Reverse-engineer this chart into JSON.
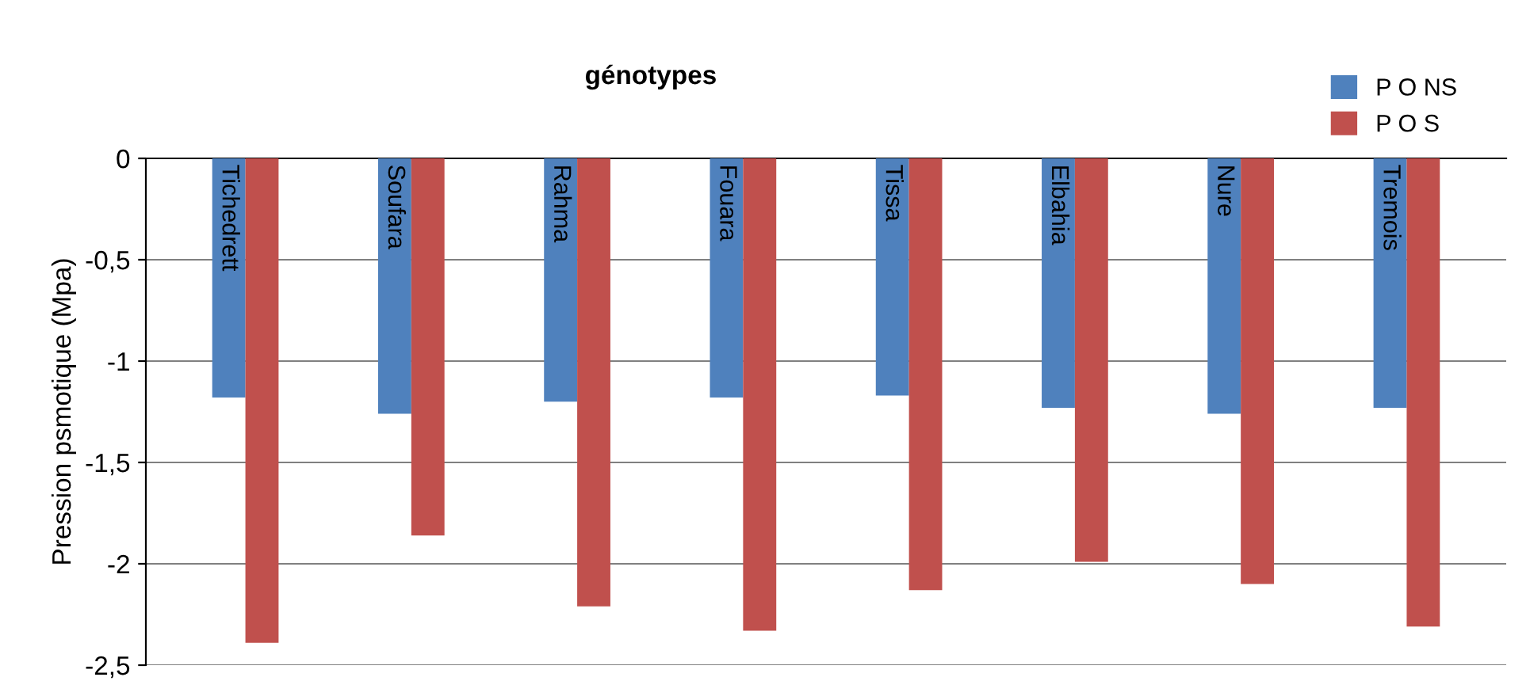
{
  "chart_data": {
    "type": "bar",
    "title": "génotypes",
    "ylabel": "Pression psmotique (Mpa)",
    "categories": [
      "Tichedrett",
      "Soufara",
      "Rahma",
      "Fouara",
      "Tissa",
      "Elbahia",
      "Nure",
      "Tremois"
    ],
    "series": [
      {
        "name": "P O NS",
        "color": "#4f81bd",
        "values": [
          -1.18,
          -1.26,
          -1.2,
          -1.18,
          -1.17,
          -1.23,
          -1.26,
          -1.23
        ]
      },
      {
        "name": "P O S",
        "color": "#c0504d",
        "values": [
          -2.39,
          -1.86,
          -2.21,
          -2.33,
          -2.13,
          -1.99,
          -2.1,
          -2.31
        ]
      }
    ],
    "ylim": [
      -2.5,
      0
    ],
    "yticks": [
      {
        "value": 0,
        "label": "0"
      },
      {
        "value": -0.5,
        "label": "-0,5"
      },
      {
        "value": -1,
        "label": "-1"
      },
      {
        "value": -1.5,
        "label": "-1,5"
      },
      {
        "value": -2,
        "label": "-2"
      },
      {
        "value": -2.5,
        "label": "-2,5"
      }
    ],
    "grid": "y",
    "legend": "top right"
  }
}
